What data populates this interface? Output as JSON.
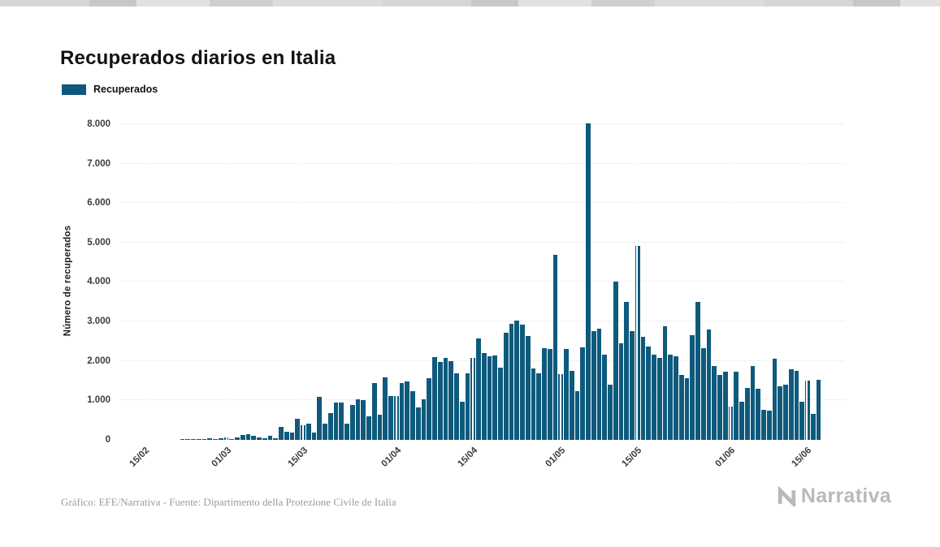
{
  "header": {
    "title": "Recuperados diarios en Italia"
  },
  "legend": {
    "label": "Recuperados"
  },
  "footer": {
    "credit": "Gráfico: EFE/Narrativa - Fuente: Dipartimento della Protezione Civile de Italia",
    "brand": "Narrativa"
  },
  "colors": {
    "bar": "#0E5A7C",
    "grid": "#f1f1f1",
    "tick_text": "#3d3d3d",
    "footer_text": "#9b9b9b",
    "brand_gray": "#b9b9b9"
  },
  "chart_data": {
    "type": "bar",
    "title": "Recuperados diarios en Italia",
    "xlabel": "",
    "ylabel": "Número de recuperados",
    "ylim": [
      0,
      8000
    ],
    "grid": "faint-horizontal",
    "legend_position": "top-left",
    "series_name": "Recuperados",
    "y_tick_labels": [
      "0",
      "1.000",
      "2.000",
      "3.000",
      "4.000",
      "5.000",
      "6.000",
      "7.000",
      "8.000"
    ],
    "x_tick_labels": [
      "15/02",
      "01/03",
      "15/03",
      "01/04",
      "15/04",
      "01/05",
      "15/05",
      "01/06",
      "15/06"
    ],
    "x": [
      "12/02",
      "13/02",
      "14/02",
      "15/02",
      "16/02",
      "17/02",
      "18/02",
      "19/02",
      "20/02",
      "21/02",
      "22/02",
      "23/02",
      "24/02",
      "25/02",
      "26/02",
      "27/02",
      "28/02",
      "29/02",
      "01/03",
      "02/03",
      "03/03",
      "04/03",
      "05/03",
      "06/03",
      "07/03",
      "08/03",
      "09/03",
      "10/03",
      "11/03",
      "12/03",
      "13/03",
      "14/03",
      "15/03",
      "16/03",
      "17/03",
      "18/03",
      "19/03",
      "20/03",
      "21/03",
      "22/03",
      "23/03",
      "24/03",
      "25/03",
      "26/03",
      "27/03",
      "28/03",
      "29/03",
      "30/03",
      "31/03",
      "01/04",
      "02/04",
      "03/04",
      "04/04",
      "05/04",
      "06/04",
      "07/04",
      "08/04",
      "09/04",
      "10/04",
      "11/04",
      "12/04",
      "13/04",
      "14/04",
      "15/04",
      "16/04",
      "17/04",
      "18/04",
      "19/04",
      "20/04",
      "21/04",
      "22/04",
      "23/04",
      "24/04",
      "25/04",
      "26/04",
      "27/04",
      "28/04",
      "29/04",
      "30/04",
      "01/05",
      "02/05",
      "03/05",
      "04/05",
      "05/05",
      "06/05",
      "07/05",
      "08/05",
      "09/05",
      "10/05",
      "11/05",
      "12/05",
      "13/05",
      "14/05",
      "15/05",
      "16/05",
      "17/05",
      "18/05",
      "19/05",
      "20/05",
      "21/05",
      "22/05",
      "23/05",
      "24/05",
      "25/05",
      "26/05",
      "27/05",
      "28/05",
      "29/05",
      "30/05",
      "31/05",
      "01/06",
      "02/06",
      "03/06",
      "04/06",
      "05/06",
      "06/06",
      "07/06",
      "08/06",
      "09/06",
      "10/06",
      "11/06",
      "12/06",
      "13/06",
      "14/06",
      "15/06",
      "16/06",
      "17/06"
    ],
    "values": [
      0,
      0,
      0,
      0,
      0,
      0,
      0,
      0,
      0,
      0,
      1,
      1,
      1,
      1,
      3,
      42,
      5,
      33,
      66,
      11,
      61,
      116,
      138,
      109,
      66,
      33,
      102,
      41,
      321,
      213,
      181,
      527,
      369,
      414,
      192,
      1084,
      415,
      689,
      943,
      952,
      408,
      894,
      1036,
      999,
      589,
      1434,
      646,
      1590,
      1109,
      1118,
      1431,
      1480,
      1238,
      819,
      1022,
      1555,
      2099,
      1979,
      2079,
      1985,
      1677,
      962,
      1695,
      2072,
      2563,
      2200,
      2128,
      2148,
      1822,
      2723,
      2943,
      3033,
      2922,
      2622,
      1808,
      1696,
      2317,
      2311,
      4693,
      1665,
      2304,
      1740,
      1225,
      2352,
      8014,
      2747,
      2809,
      2163,
      1401,
      4008,
      2452,
      3502,
      2747,
      4917,
      2605,
      2366,
      2150,
      2075,
      2881,
      2160,
      2120,
      1639,
      1570,
      2650,
      3503,
      2319,
      2789,
      1874,
      1639,
      1735,
      848,
      1737,
      957,
      1311,
      1866,
      1297,
      759,
      747,
      2062,
      1366,
      1399,
      1780,
      1747,
      963,
      1505,
      660,
      1520
    ]
  }
}
